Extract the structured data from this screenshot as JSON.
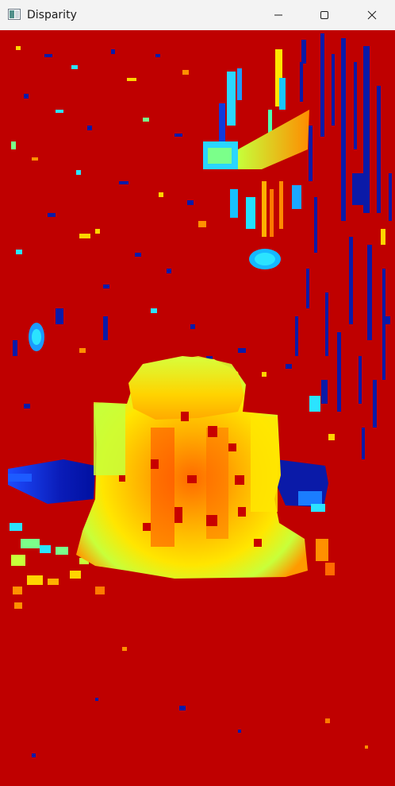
{
  "window": {
    "title": "Disparity",
    "app_icon": "app-window-icon",
    "controls": {
      "minimize_icon": "minimize-icon",
      "maximize_icon": "maximize-icon",
      "close_icon": "close-icon"
    }
  },
  "image": {
    "kind": "disparity-map",
    "colormap": "jet",
    "background_color": "#bf0000"
  }
}
